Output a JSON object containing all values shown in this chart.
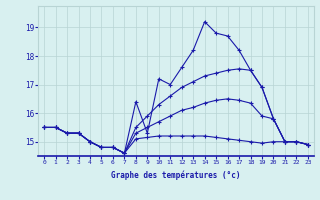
{
  "xlabel": "Graphe des températures (°c)",
  "background_color": "#d8f0f0",
  "line_color": "#1a1aaa",
  "grid_color": "#b8d4d4",
  "x_hours": [
    0,
    1,
    2,
    3,
    4,
    5,
    6,
    7,
    8,
    9,
    10,
    11,
    12,
    13,
    14,
    15,
    16,
    17,
    18,
    19,
    20,
    21,
    22,
    23
  ],
  "line1": [
    15.5,
    15.5,
    15.3,
    15.3,
    15.0,
    14.8,
    14.8,
    14.6,
    16.4,
    15.3,
    17.2,
    17.0,
    17.6,
    18.2,
    19.2,
    18.8,
    18.7,
    18.2,
    17.5,
    16.9,
    15.8,
    15.0,
    15.0,
    14.9
  ],
  "line2": [
    15.5,
    15.5,
    15.3,
    15.3,
    15.0,
    14.8,
    14.8,
    14.6,
    15.5,
    15.9,
    16.3,
    16.6,
    16.9,
    17.1,
    17.3,
    17.4,
    17.5,
    17.55,
    17.5,
    16.9,
    15.8,
    15.0,
    15.0,
    14.9
  ],
  "line3": [
    15.5,
    15.5,
    15.3,
    15.3,
    15.0,
    14.8,
    14.8,
    14.6,
    15.3,
    15.5,
    15.7,
    15.9,
    16.1,
    16.2,
    16.35,
    16.45,
    16.5,
    16.45,
    16.35,
    15.9,
    15.8,
    15.0,
    15.0,
    14.9
  ],
  "line4": [
    15.5,
    15.5,
    15.3,
    15.3,
    15.0,
    14.8,
    14.8,
    14.6,
    15.1,
    15.15,
    15.2,
    15.2,
    15.2,
    15.2,
    15.2,
    15.15,
    15.1,
    15.05,
    15.0,
    14.95,
    15.0,
    15.0,
    15.0,
    14.9
  ],
  "ylim": [
    14.5,
    19.75
  ],
  "yticks": [
    15,
    16,
    17,
    18,
    19
  ],
  "xticks": [
    0,
    1,
    2,
    3,
    4,
    5,
    6,
    7,
    8,
    9,
    10,
    11,
    12,
    13,
    14,
    15,
    16,
    17,
    18,
    19,
    20,
    21,
    22,
    23
  ]
}
